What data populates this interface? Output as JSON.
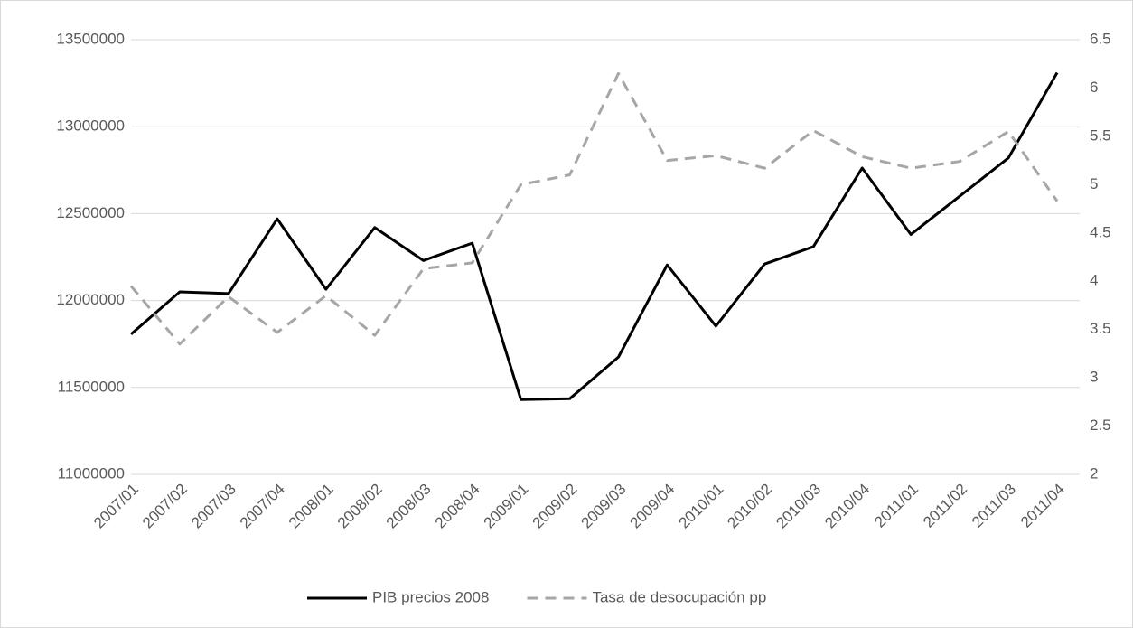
{
  "chart_data": {
    "type": "line",
    "categories": [
      "2007/01",
      "2007/02",
      "2007/03",
      "2007/04",
      "2008/01",
      "2008/02",
      "2008/03",
      "2008/04",
      "2009/01",
      "2009/02",
      "2009/03",
      "2009/04",
      "2010/01",
      "2010/02",
      "2010/03",
      "2010/04",
      "2011/01",
      "2011/02",
      "2011/03",
      "2011/04"
    ],
    "series": [
      {
        "name": "PIB precios 2008",
        "color": "#000000",
        "dash": "solid",
        "values": [
          11806000,
          12050000,
          12040000,
          12470000,
          12065000,
          12420000,
          12230000,
          12330000,
          11430000,
          11435000,
          11675000,
          12205000,
          11853000,
          12210000,
          12310000,
          12762000,
          12380000,
          12600000,
          12820000,
          13310000
        ]
      },
      {
        "name": "Tasa de desocupación pp",
        "color": "#a6a6a6",
        "dash": "dashed",
        "axis": "y2",
        "values": [
          3.95,
          3.35,
          3.84,
          3.47,
          3.85,
          3.44,
          4.13,
          4.19,
          5.0,
          5.1,
          6.15,
          5.25,
          5.3,
          5.17,
          5.56,
          5.29,
          5.17,
          5.24,
          5.55,
          4.83
        ]
      }
    ],
    "ylim": [
      11000000,
      13500000
    ],
    "yticks": [
      11000000,
      11500000,
      12000000,
      12500000,
      13000000,
      13500000
    ],
    "y2lim": [
      2,
      6.5
    ],
    "y2ticks": [
      2,
      2.5,
      3,
      3.5,
      4,
      4.5,
      5,
      5.5,
      6,
      6.5
    ],
    "grid": true,
    "legend": "bottom"
  }
}
